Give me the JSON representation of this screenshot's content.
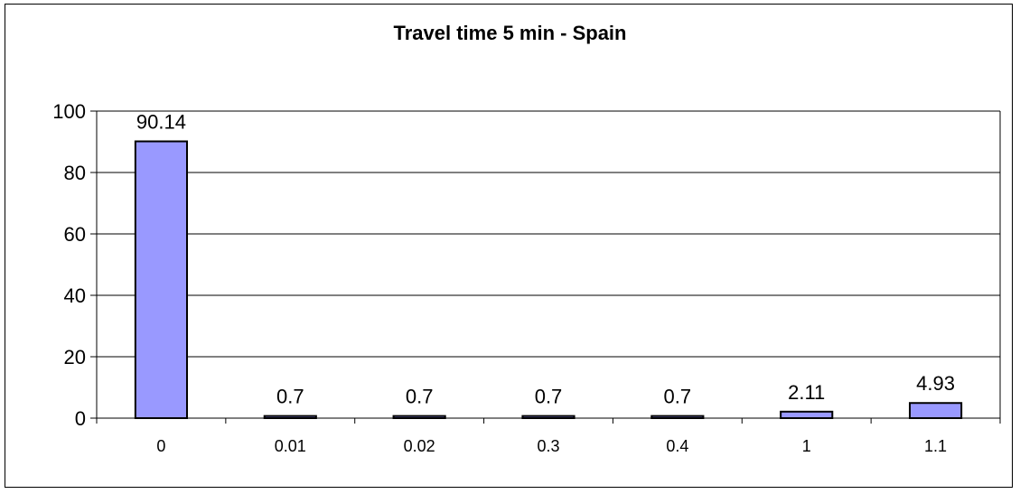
{
  "chart_data": {
    "type": "bar",
    "title": "Travel time 5 min - Spain",
    "xlabel": "",
    "ylabel": "",
    "categories": [
      "0",
      "0.01",
      "0.02",
      "0.3",
      "0.4",
      "1",
      "1.1"
    ],
    "values": [
      90.14,
      0.7,
      0.7,
      0.7,
      0.7,
      2.11,
      4.93
    ],
    "data_labels": [
      "90.14",
      "0.7",
      "0.7",
      "0.7",
      "0.7",
      "2.11",
      "4.93"
    ],
    "ylim": [
      0,
      100
    ],
    "yticks": [
      0,
      20,
      40,
      60,
      80,
      100
    ],
    "grid": true,
    "legend": "none",
    "bar_color": "#9999ff",
    "bar_edge_color": "#000000"
  }
}
